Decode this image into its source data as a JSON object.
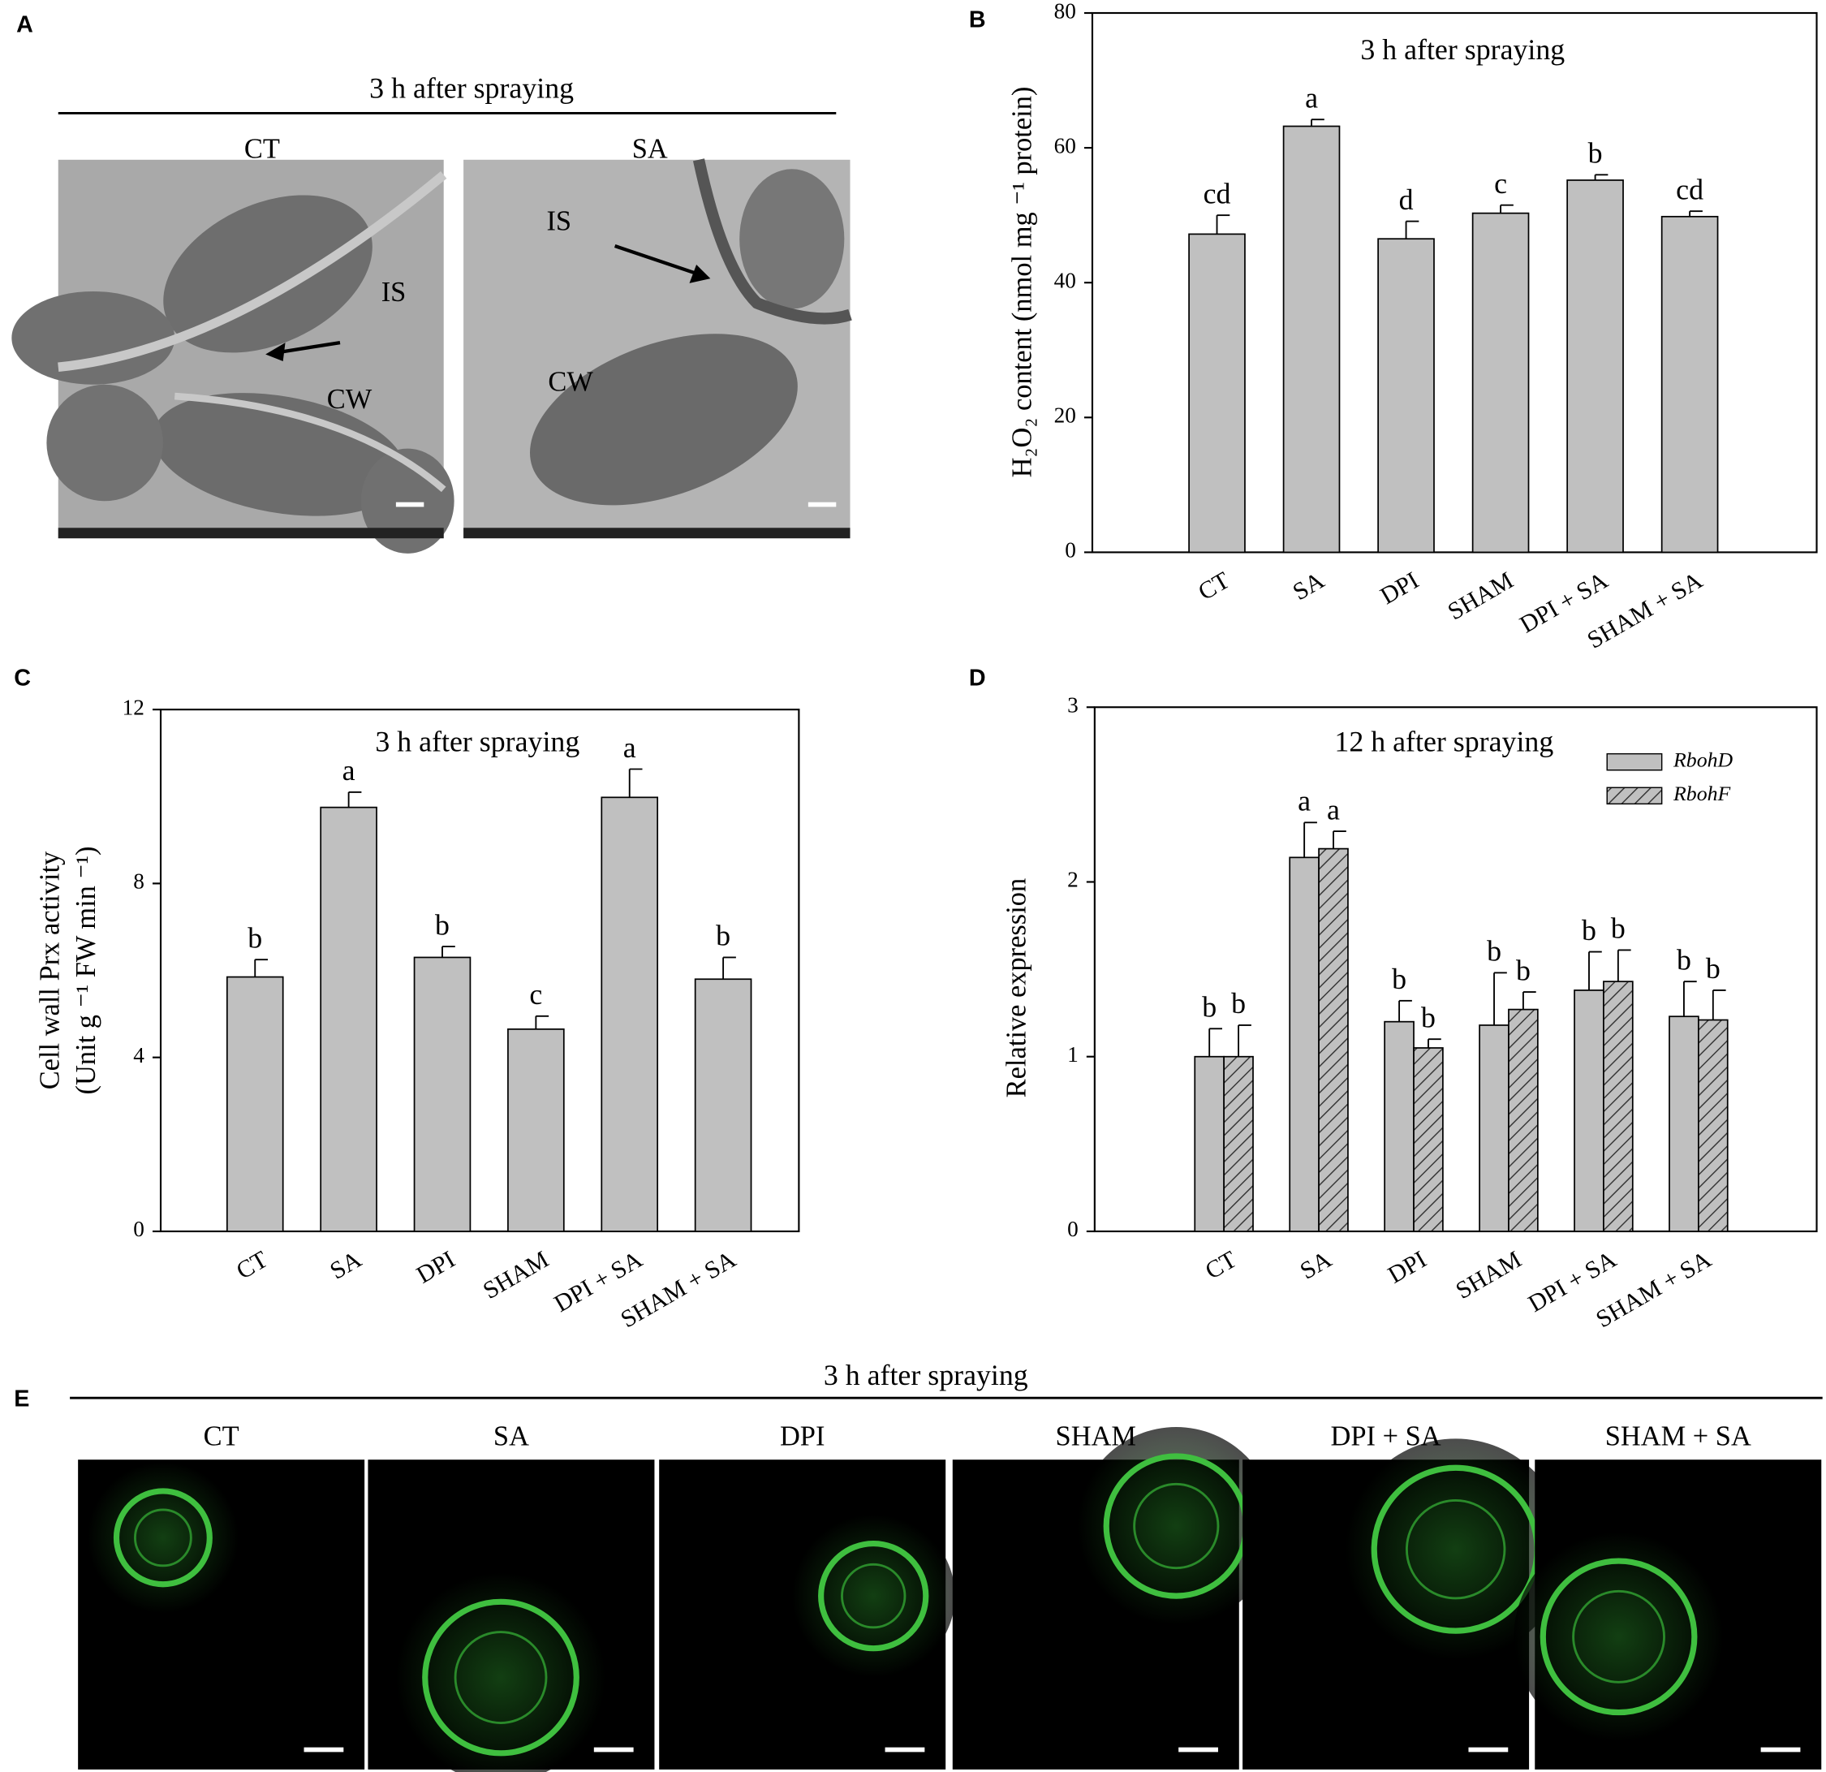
{
  "panel_a": {
    "label": "A",
    "title": "3 h after spraying",
    "images": [
      {
        "title": "CT",
        "labels": [
          "IS",
          "CW"
        ]
      },
      {
        "title": "SA",
        "labels": [
          "IS",
          "CW"
        ]
      }
    ]
  },
  "chart_data": [
    {
      "type": "bar",
      "panel_label": "B",
      "title": "3 h after spraying",
      "ylabel": "H₂O₂ content (nmol mg ⁻¹ protein)",
      "categories": [
        "CT",
        "SA",
        "DPI",
        "SHAM",
        "DPI + SA",
        "SHAM + SA"
      ],
      "series": [
        {
          "color": "#c0c0c0",
          "values": [
            47.2,
            63.2,
            46.5,
            50.3,
            55.2,
            49.8
          ],
          "errors": [
            2.8,
            1.0,
            2.6,
            1.2,
            0.8,
            0.8
          ],
          "letters": [
            "cd",
            "a",
            "d",
            "c",
            "b",
            "cd"
          ]
        }
      ],
      "ylim": [
        0,
        80
      ],
      "yticks": [
        0,
        20,
        40,
        60,
        80
      ]
    },
    {
      "type": "bar",
      "panel_label": "C",
      "title": "3 h after spraying",
      "ylabel": [
        "Cell wall Prx activity",
        "(Unit  g ⁻¹ FW min ⁻¹)"
      ],
      "categories": [
        "CT",
        "SA",
        "DPI",
        "SHAM",
        "DPI + SA",
        "SHAM + SA"
      ],
      "series": [
        {
          "color": "#c0c0c0",
          "values": [
            5.85,
            9.75,
            6.3,
            4.65,
            9.98,
            5.8
          ],
          "errors": [
            0.4,
            0.35,
            0.25,
            0.3,
            0.65,
            0.5
          ],
          "letters": [
            "b",
            "a",
            "b",
            "c",
            "a",
            "b"
          ]
        }
      ],
      "ylim": [
        0,
        12
      ],
      "yticks": [
        0,
        4,
        8,
        12
      ]
    },
    {
      "type": "bar",
      "panel_label": "D",
      "title": "12 h after spraying",
      "ylabel": "Relative expression",
      "categories": [
        "CT",
        "SA",
        "DPI",
        "SHAM",
        "DPI + SA",
        "SHAM + SA"
      ],
      "series": [
        {
          "name": "RbohD",
          "color": "#c0c0c0",
          "values": [
            1.0,
            2.14,
            1.2,
            1.18,
            1.38,
            1.23
          ],
          "errors": [
            0.16,
            0.2,
            0.12,
            0.3,
            0.22,
            0.2
          ],
          "letters": [
            "b",
            "a",
            "b",
            "b",
            "b",
            "b"
          ]
        },
        {
          "name": "RbohF",
          "color": "#c0c0c0",
          "pattern": "hatch",
          "values": [
            1.0,
            2.19,
            1.05,
            1.27,
            1.43,
            1.21
          ],
          "errors": [
            0.18,
            0.1,
            0.05,
            0.1,
            0.18,
            0.17
          ],
          "letters": [
            "b",
            "a",
            "b",
            "b",
            "b",
            "b"
          ]
        }
      ],
      "ylim": [
        0,
        3
      ],
      "yticks": [
        0,
        1,
        2,
        3
      ],
      "legend": "upper right"
    }
  ],
  "panel_e": {
    "label": "E",
    "title": "3 h after spraying",
    "images": [
      "CT",
      "SA",
      "DPI",
      "SHAM",
      "DPI + SA",
      "SHAM + SA"
    ]
  }
}
